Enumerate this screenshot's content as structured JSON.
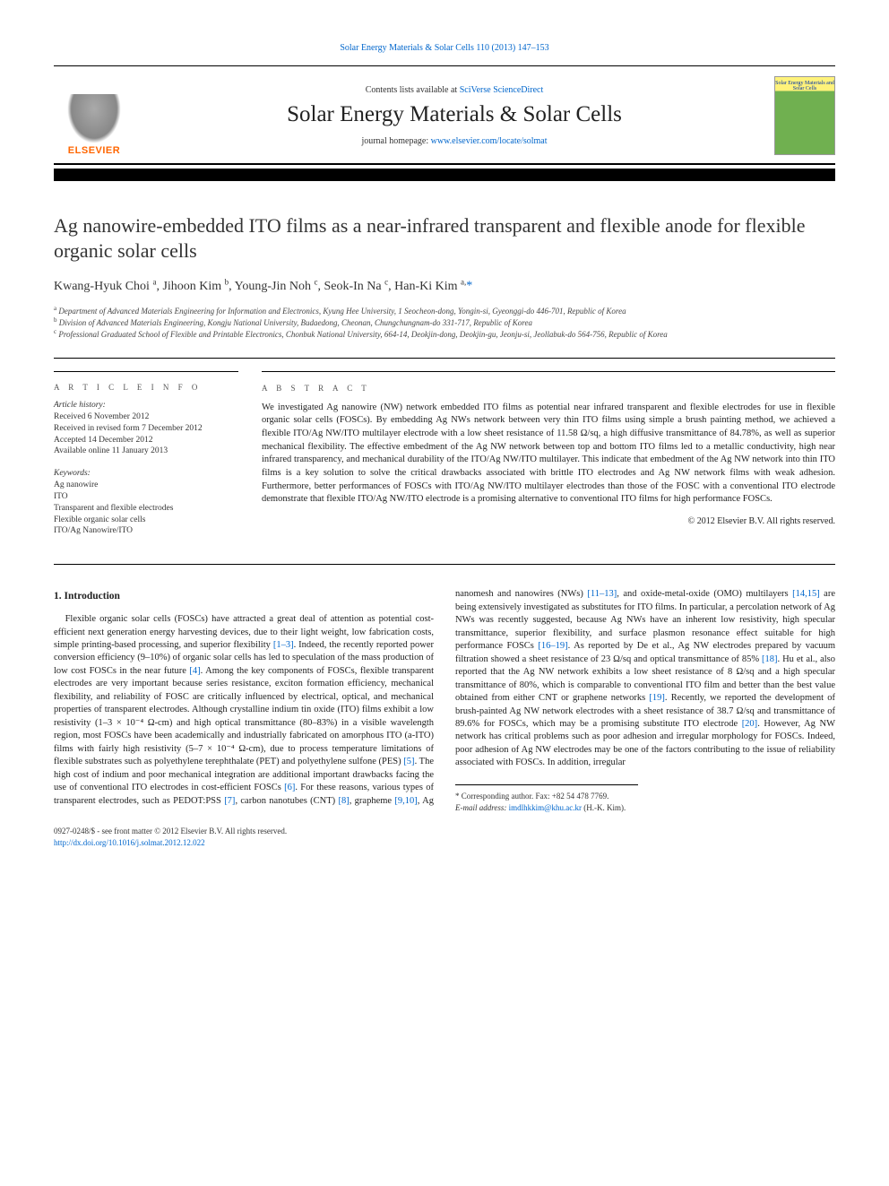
{
  "top_link": "Solar Energy Materials & Solar Cells 110 (2013) 147–153",
  "header": {
    "elsevier": "ELSEVIER",
    "contents_prefix": "Contents lists available at ",
    "contents_link": "SciVerse ScienceDirect",
    "journal_name": "Solar Energy Materials & Solar Cells",
    "homepage_prefix": "journal homepage: ",
    "homepage_link": "www.elsevier.com/locate/solmat",
    "cover_label": "Solar Energy Materials and Solar Cells"
  },
  "title": "Ag nanowire-embedded ITO films as a near-infrared transparent and flexible anode for flexible organic solar cells",
  "authors_html": "Kwang-Hyuk Choi <sup>a</sup>, Jihoon Kim <sup>b</sup>, Young-Jin Noh <sup>c</sup>, Seok-In Na <sup>c</sup>, Han-Ki Kim <sup>a,</sup>",
  "author_corr_mark": "*",
  "affiliations": [
    "a Department of Advanced Materials Engineering for Information and Electronics, Kyung Hee University, 1 Seocheon-dong, Yongin-si, Gyeonggi-do 446-701, Republic of Korea",
    "b Division of Advanced Materials Engineering, Kongju National University, Budaedong, Cheonan, Chungchungnam-do 331-717, Republic of Korea",
    "c Professional Graduated School of Flexible and Printable Electronics, Chonbuk National University, 664-14, Deokjin-dong, Deokjin-gu, Jeonju-si, Jeollabuk-do 564-756, Republic of Korea"
  ],
  "info": {
    "head": "A R T I C L E  I N F O",
    "hist_label": "Article history:",
    "received": "Received 6 November 2012",
    "revised": "Received in revised form 7 December 2012",
    "accepted": "Accepted 14 December 2012",
    "online": "Available online 11 January 2013",
    "kw_label": "Keywords:",
    "keywords": [
      "Ag nanowire",
      "ITO",
      "Transparent and flexible electrodes",
      "Flexible organic solar cells",
      "ITO/Ag Nanowire/ITO"
    ]
  },
  "abstract": {
    "head": "A B S T R A C T",
    "text": "We investigated Ag nanowire (NW) network embedded ITO films as potential near infrared transparent and flexible electrodes for use in flexible organic solar cells (FOSCs). By embedding Ag NWs network between very thin ITO films using simple a brush painting method, we achieved a flexible ITO/Ag NW/ITO multilayer electrode with a low sheet resistance of 11.58 Ω/sq, a high diffusive transmittance of 84.78%, as well as superior mechanical flexibility. The effective embedment of the Ag NW network between top and bottom ITO films led to a metallic conductivity, high near infrared transparency, and mechanical durability of the ITO/Ag NW/ITO multilayer. This indicate that embedment of the Ag NW network into thin ITO films is a key solution to solve the critical drawbacks associated with brittle ITO electrodes and Ag NW network films with weak adhesion. Furthermore, better performances of FOSCs with ITO/Ag NW/ITO multilayer electrodes than those of the FOSC with a conventional ITO electrode demonstrate that flexible ITO/Ag NW/ITO electrode is a promising alternative to conventional ITO films for high performance FOSCs.",
    "copyright": "© 2012 Elsevier B.V. All rights reserved."
  },
  "intro": {
    "heading": "1.  Introduction",
    "para": "Flexible organic solar cells (FOSCs) have attracted a great deal of attention as potential cost-efficient next generation energy harvesting devices, due to their light weight, low fabrication costs, simple printing-based processing, and superior flexibility [1–3]. Indeed, the recently reported power conversion efficiency (9–10%) of organic solar cells has led to speculation of the mass production of low cost FOSCs in the near future [4]. Among the key components of FOSCs, flexible transparent electrodes are very important because series resistance, exciton formation efficiency, mechanical flexibility, and reliability of FOSC are critically influenced by electrical, optical, and mechanical properties of transparent electrodes. Although crystalline indium tin oxide (ITO) films exhibit a low resistivity (1–3 × 10⁻⁴ Ω-cm) and high optical transmittance (80–83%) in a visible wavelength region, most FOSCs have been academically and industrially fabricated on amorphous ITO (a-ITO) films with fairly high resistivity (5–7 × 10⁻⁴ Ω-cm), due to process temperature limitations of flexible substrates such as polyethylene terephthalate (PET) and polyethylene sulfone (PES) [5]. The high cost of indium and poor mechanical integration are additional important drawbacks facing the use of conventional ITO electrodes in cost-efficient FOSCs [6]. For these reasons, various types of transparent electrodes, such as PEDOT:PSS [7], carbon nanotubes (CNT) [8], grapheme [9,10], Ag nanomesh and nanowires (NWs) [11–13], and oxide-metal-oxide (OMO) multilayers [14,15] are being extensively investigated as substitutes for ITO films. In particular, a percolation network of Ag NWs was recently suggested, because Ag NWs have an inherent low resistivity, high specular transmittance, superior flexibility, and surface plasmon resonance effect suitable for high performance FOSCs [16–19]. As reported by De et al., Ag NW electrodes prepared by vacuum filtration showed a sheet resistance of 23 Ω/sq and optical transmittance of 85% [18]. Hu et al., also reported that the Ag NW network exhibits a low sheet resistance of 8 Ω/sq and a high specular transmittance of 80%, which is comparable to conventional ITO film and better than the best value obtained from either CNT or graphene networks [19]. Recently, we reported the development of brush-painted Ag NW network electrodes with a sheet resistance of 38.7 Ω/sq and transmittance of 89.6% for FOSCs, which may be a promising substitute ITO electrode [20]. However, Ag NW network has critical problems such as poor adhesion and irregular morphology for FOSCs. Indeed, poor adhesion of Ag NW electrodes may be one of the factors contributing to the issue of reliability associated with FOSCs. In addition, irregular"
  },
  "footnote": {
    "corr": "* Corresponding author. Fax: +82 54 478 7769.",
    "email_label": "E-mail address: ",
    "email": "imdlhkkim@khu.ac.kr",
    "email_tail": " (H.-K. Kim)."
  },
  "footer": {
    "issn": "0927-0248/$ - see front matter © 2012 Elsevier B.V. All rights reserved.",
    "doi_label": "http://dx.doi.org/",
    "doi": "10.1016/j.solmat.2012.12.022"
  },
  "colors": {
    "link": "#0066cc",
    "elsevier_orange": "#ff6600",
    "text": "#222222",
    "rule": "#000000"
  }
}
